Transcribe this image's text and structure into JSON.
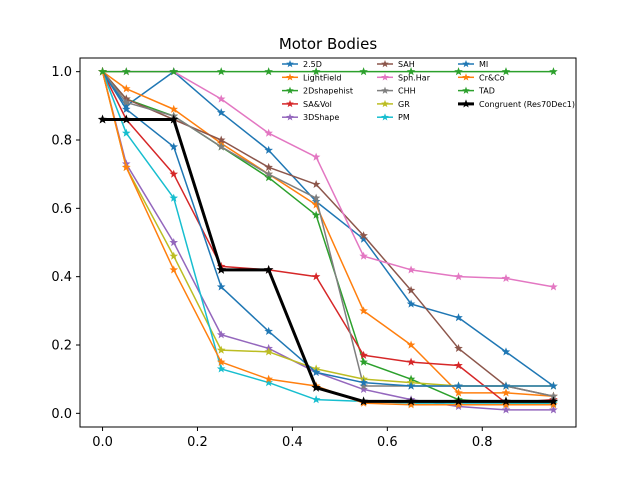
{
  "chart_data": {
    "type": "line",
    "title": "Motor Bodies",
    "xlabel": "",
    "ylabel": "",
    "xlim": [
      -0.0475,
      0.9975
    ],
    "ylim": [
      -0.04,
      1.04
    ],
    "xticks": [
      0.0,
      0.2,
      0.4,
      0.6,
      0.8
    ],
    "xtick_labels": [
      "0.0",
      "0.2",
      "0.4",
      "0.6",
      "0.8"
    ],
    "yticks": [
      0.0,
      0.2,
      0.4,
      0.6,
      0.8,
      1.0
    ],
    "ytick_labels": [
      "0.0",
      "0.2",
      "0.4",
      "0.6",
      "0.8",
      "1.0"
    ],
    "grid": false,
    "legend_position": "top-right",
    "x": [
      0.0,
      0.05,
      0.15,
      0.25,
      0.35,
      0.45,
      0.55,
      0.65,
      0.75,
      0.85,
      0.95
    ],
    "series": [
      {
        "name": "2.5D",
        "color": "#1f77b4",
        "marker": "star",
        "width": 1.5,
        "values": [
          1.0,
          0.9,
          1.0,
          0.88,
          0.77,
          0.62,
          0.51,
          0.32,
          0.28,
          0.18,
          0.08
        ]
      },
      {
        "name": "LightField",
        "color": "#ff7f0e",
        "marker": "star",
        "width": 1.5,
        "values": [
          1.0,
          0.95,
          0.89,
          0.79,
          0.7,
          0.61,
          0.3,
          0.2,
          0.06,
          0.06,
          0.05
        ]
      },
      {
        "name": "2Dshapehist",
        "color": "#2ca02c",
        "marker": "star",
        "width": 1.5,
        "values": [
          1.0,
          0.92,
          0.87,
          0.78,
          0.69,
          0.58,
          0.15,
          0.1,
          0.04,
          0.03,
          0.03
        ]
      },
      {
        "name": "SA&Vol",
        "color": "#d62728",
        "marker": "star",
        "width": 1.5,
        "values": [
          1.0,
          0.86,
          0.7,
          0.43,
          0.42,
          0.4,
          0.17,
          0.15,
          0.14,
          0.03,
          0.04
        ]
      },
      {
        "name": "3DShape",
        "color": "#9467bd",
        "marker": "star",
        "width": 1.5,
        "values": [
          1.0,
          0.73,
          0.5,
          0.23,
          0.19,
          0.12,
          0.07,
          0.04,
          0.02,
          0.01,
          0.01
        ]
      },
      {
        "name": "SAH",
        "color": "#8c564b",
        "marker": "star",
        "width": 1.5,
        "values": [
          1.0,
          0.92,
          0.86,
          0.8,
          0.72,
          0.67,
          0.52,
          0.36,
          0.19,
          0.08,
          0.05
        ]
      },
      {
        "name": "Sph.Har",
        "color": "#e377c2",
        "marker": "star",
        "width": 1.5,
        "values": [
          1.0,
          1.0,
          1.0,
          0.92,
          0.82,
          0.75,
          0.46,
          0.42,
          0.4,
          0.395,
          0.37
        ]
      },
      {
        "name": "CHH",
        "color": "#7f7f7f",
        "marker": "star",
        "width": 1.5,
        "values": [
          1.0,
          0.91,
          0.87,
          0.78,
          0.7,
          0.63,
          0.08,
          0.08,
          0.08,
          0.08,
          0.05
        ]
      },
      {
        "name": "GR",
        "color": "#bcbd22",
        "marker": "star",
        "width": 1.5,
        "values": [
          1.0,
          0.72,
          0.46,
          0.185,
          0.18,
          0.13,
          0.1,
          0.09,
          0.08,
          0.08,
          0.08
        ]
      },
      {
        "name": "PM",
        "color": "#17becf",
        "marker": "star",
        "width": 1.5,
        "values": [
          1.0,
          0.82,
          0.63,
          0.13,
          0.09,
          0.04,
          0.035,
          0.03,
          0.03,
          0.03,
          0.03
        ]
      },
      {
        "name": "MI",
        "color": "#1f77b4",
        "marker": "star",
        "width": 1.5,
        "values": [
          1.0,
          0.89,
          0.78,
          0.37,
          0.24,
          0.12,
          0.09,
          0.08,
          0.08,
          0.08,
          0.08
        ]
      },
      {
        "name": "Cr&Co",
        "color": "#ff7f0e",
        "marker": "star",
        "width": 1.5,
        "values": [
          1.0,
          0.72,
          0.42,
          0.15,
          0.1,
          0.08,
          0.03,
          0.025,
          0.025,
          0.025,
          0.025
        ]
      },
      {
        "name": "TAD",
        "color": "#2ca02c",
        "marker": "star",
        "width": 1.5,
        "values": [
          1.0,
          1.0,
          1.0,
          1.0,
          1.0,
          1.0,
          1.0,
          1.0,
          1.0,
          1.0,
          1.0
        ]
      },
      {
        "name": "Congruent (Res70Dec1)",
        "color": "#000000",
        "marker": "star",
        "width": 3,
        "x": [
          0.0,
          0.05,
          0.15,
          0.25,
          0.35,
          0.45,
          0.55,
          0.65,
          0.75,
          0.85,
          0.95
        ],
        "values": [
          0.86,
          0.86,
          0.86,
          0.42,
          0.42,
          0.075,
          0.035,
          0.035,
          0.035,
          0.035,
          0.035
        ]
      }
    ]
  }
}
